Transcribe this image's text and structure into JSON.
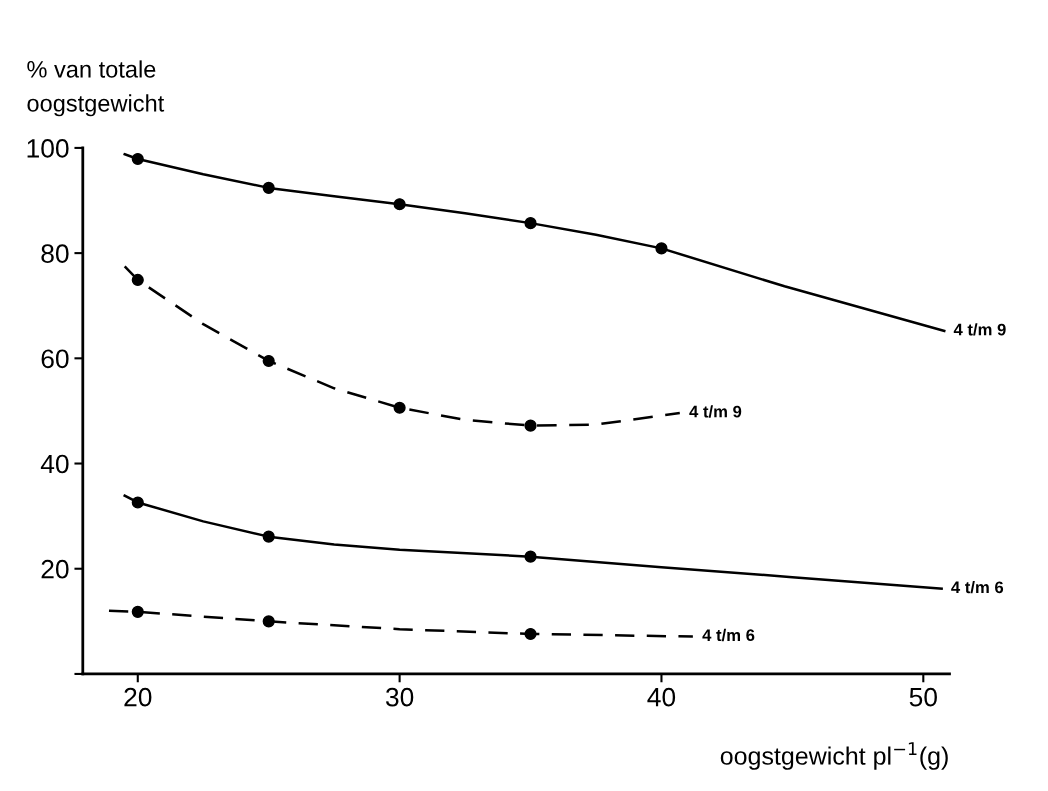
{
  "chart_data": {
    "type": "line",
    "ylabel": "% van totale\noogstgewicht",
    "xlabel": "oogstgewicht pl$^{−1}$(g)",
    "xlim": [
      17.9,
      51
    ],
    "ylim": [
      0,
      100
    ],
    "xticks": [
      20,
      30,
      40,
      50
    ],
    "yticks": [
      20,
      40,
      60,
      80,
      {
        "value": 0,
        "label": null
      },
      100
    ],
    "grid": false,
    "legend": false,
    "series": [
      {
        "name": "4 t/m 9",
        "line_style": "solid",
        "marker": "none",
        "color": "#000000",
        "x": [
          19.5,
          20,
          22.5,
          25,
          27.5,
          30,
          32.5,
          35,
          37.5,
          40,
          44.7,
          50.8
        ],
        "values": [
          98.8,
          97.9,
          95,
          92.4,
          90.8,
          89.3,
          87.6,
          85.7,
          83.5,
          80.9,
          73.7,
          65.2
        ]
      },
      {
        "name": "4 t/m 9",
        "line_style": "dashed",
        "marker": "none",
        "color": "#000000",
        "x": [
          19.5,
          20,
          22.5,
          25,
          27.5,
          30,
          32.5,
          35,
          37.5,
          40.7
        ],
        "values": [
          77.5,
          74.9,
          66.5,
          59.5,
          54.3,
          50.6,
          48.3,
          47.2,
          47.4,
          49.6
        ]
      },
      {
        "name": "4 t/m 6",
        "line_style": "solid",
        "marker": "none",
        "color": "#000000",
        "x": [
          19.5,
          20,
          22.5,
          25,
          27.5,
          30,
          35,
          40,
          45,
          50.7
        ],
        "values": [
          33.9,
          32.6,
          29,
          26.1,
          24.6,
          23.6,
          22.3,
          20.3,
          18.4,
          16.2
        ]
      },
      {
        "name": "4 t/m 6",
        "line_style": "dashed",
        "marker": "none",
        "color": "#000000",
        "x": [
          18.9,
          20,
          25,
          30,
          35,
          41.2
        ],
        "values": [
          12.0,
          11.8,
          10.0,
          8.5,
          7.6,
          7.1
        ]
      },
      {
        "type": "scatter",
        "marker": "circle",
        "color": "#000000",
        "x": [
          20,
          25,
          30,
          35,
          40
        ],
        "values": [
          97.9,
          92.4,
          89.3,
          85.7,
          80.9
        ]
      },
      {
        "type": "scatter",
        "marker": "circle",
        "color": "#000000",
        "x": [
          20,
          25,
          30,
          35
        ],
        "values": [
          74.9,
          59.5,
          50.6,
          47.2
        ]
      },
      {
        "type": "scatter",
        "marker": "circle",
        "color": "#000000",
        "x": [
          20,
          25,
          35
        ],
        "values": [
          32.6,
          26.1,
          22.3
        ]
      },
      {
        "type": "scatter",
        "marker": "circle",
        "color": "#000000",
        "x": [
          20,
          25,
          35
        ],
        "values": [
          11.8,
          10.0,
          7.6
        ]
      }
    ]
  }
}
